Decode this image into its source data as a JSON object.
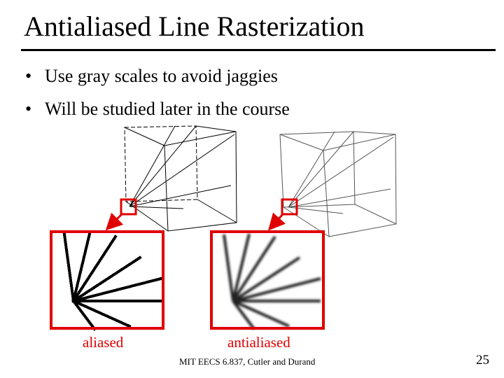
{
  "header": {
    "title": "Antialiased Line Rasterization"
  },
  "bullets": [
    "Use gray scales to avoid jaggies",
    "Will be studied later in the course"
  ],
  "figures": [
    {
      "label": "aliased"
    },
    {
      "label": "antialiased"
    }
  ],
  "footer": {
    "credit": "MIT EECS 6.837, Cutler and Durand",
    "page": "25"
  }
}
